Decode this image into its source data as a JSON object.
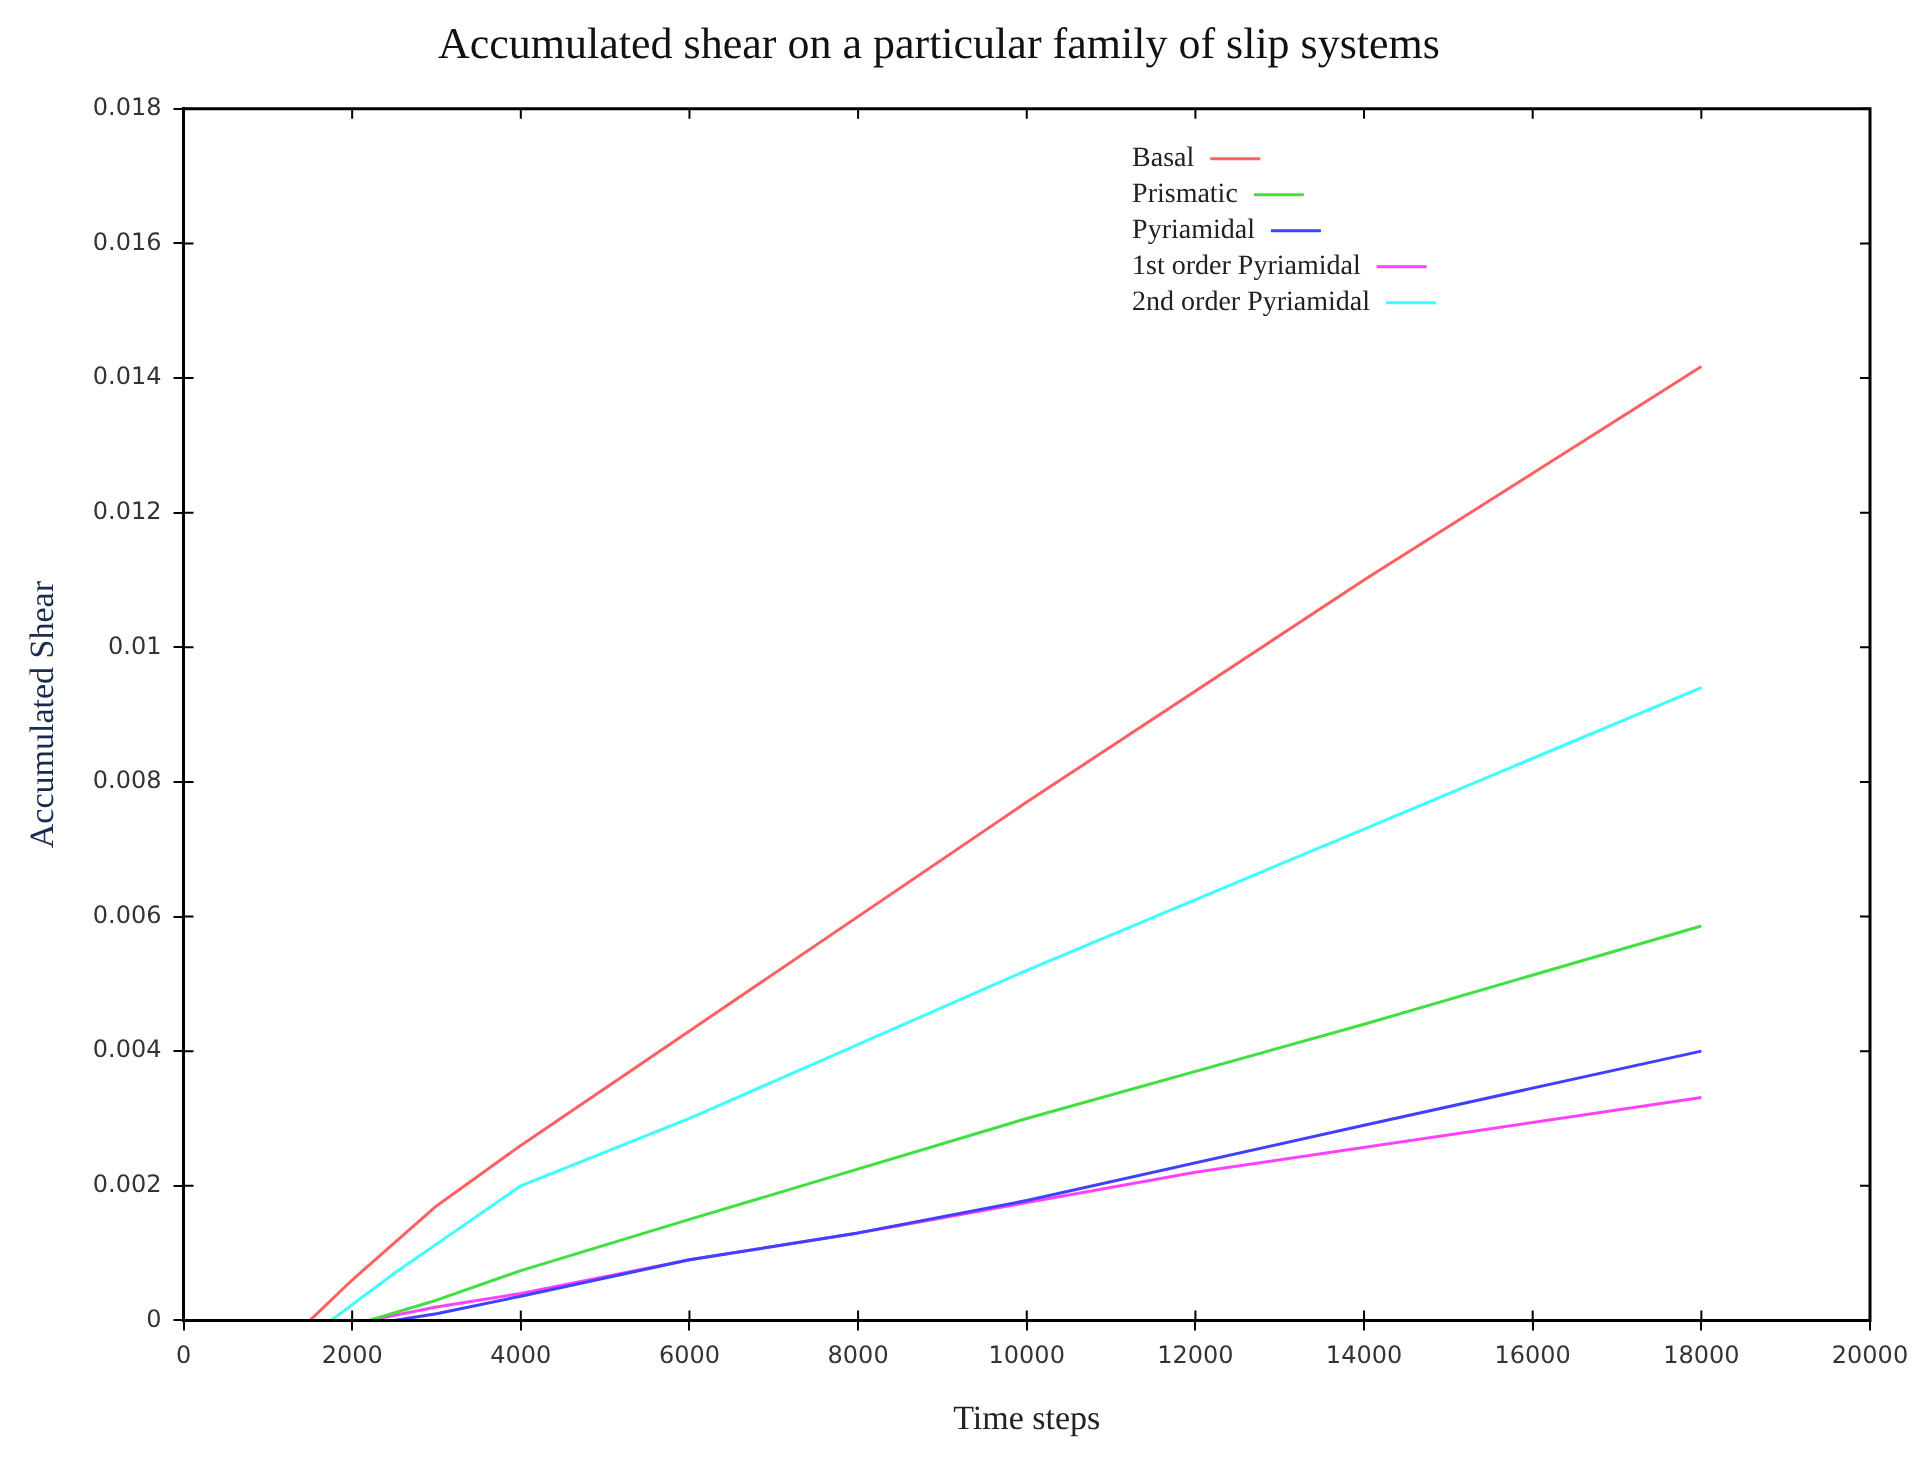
{
  "chart_data": {
    "type": "line",
    "title": "Accumulated shear on a particular family of slip systems",
    "xlabel": "Time steps",
    "ylabel": "Accumulated Shear",
    "xlim": [
      0,
      20000
    ],
    "xticks": [
      0,
      2000,
      4000,
      6000,
      8000,
      10000,
      12000,
      14000,
      16000,
      18000,
      20000
    ],
    "ylim": [
      0,
      0.018
    ],
    "yticks": [
      0,
      0.002,
      0.004,
      0.006,
      0.008,
      0.01,
      0.012,
      0.014,
      0.016,
      0.018
    ],
    "grid": false,
    "legend": "top right",
    "marker": "none",
    "line_style": "solid",
    "series": [
      {
        "name": "Basal",
        "color": "#ff6060",
        "x": [
          1500,
          2000,
          3000,
          4000,
          6000,
          10000,
          14000,
          18000
        ],
        "values": [
          0,
          0.0006,
          0.0017,
          0.0026,
          0.0043,
          0.0077,
          0.011,
          0.01417
        ]
      },
      {
        "name": "Prismatic",
        "color": "#40e040",
        "x": [
          2200,
          3000,
          4000,
          6000,
          10000,
          14000,
          18000
        ],
        "values": [
          0,
          0.0003,
          0.00074,
          0.0015,
          0.003,
          0.0044,
          0.00586
        ]
      },
      {
        "name": "Pyriamidal",
        "color": "#4040ff",
        "x": [
          2500,
          3000,
          4000,
          6000,
          8000,
          10000,
          14000,
          18000
        ],
        "values": [
          0,
          0.0001,
          0.00036,
          0.0009,
          0.0013,
          0.00178,
          0.0029,
          0.004
        ]
      },
      {
        "name": "1st order Pyriamidal",
        "color": "#ff40ff",
        "x": [
          2200,
          3000,
          4000,
          6000,
          8000,
          12000,
          18000
        ],
        "values": [
          0,
          0.0002,
          0.0004,
          0.0009,
          0.0013,
          0.0022,
          0.00331
        ]
      },
      {
        "name": "2nd order Pyriamidal",
        "color": "#40ffff",
        "x": [
          1750,
          2500,
          4000,
          6000,
          10000,
          14000,
          18000
        ],
        "values": [
          0,
          0.0007,
          0.002,
          0.003,
          0.0052,
          0.0073,
          0.0094
        ]
      }
    ]
  }
}
